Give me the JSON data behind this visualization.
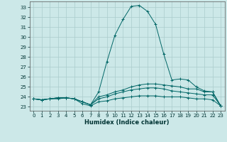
{
  "title": "",
  "xlabel": "Humidex (Indice chaleur)",
  "ylabel": "",
  "bg_color": "#cce8e8",
  "grid_color": "#aacccc",
  "line_color": "#006666",
  "x_ticks": [
    0,
    1,
    2,
    3,
    4,
    5,
    6,
    7,
    8,
    9,
    10,
    11,
    12,
    13,
    14,
    15,
    16,
    17,
    18,
    19,
    20,
    21,
    22,
    23
  ],
  "y_ticks": [
    23,
    24,
    25,
    26,
    27,
    28,
    29,
    30,
    31,
    32,
    33
  ],
  "xlim": [
    -0.5,
    23.5
  ],
  "ylim": [
    22.6,
    33.6
  ],
  "lines": [
    {
      "x": [
        0,
        1,
        2,
        3,
        4,
        5,
        6,
        7,
        8,
        9,
        10,
        11,
        12,
        13,
        14,
        15,
        16,
        17,
        18,
        19,
        20,
        21,
        22,
        23
      ],
      "y": [
        23.8,
        23.7,
        23.8,
        23.8,
        23.9,
        23.8,
        23.5,
        23.2,
        24.5,
        27.5,
        30.2,
        31.8,
        33.1,
        33.2,
        32.6,
        31.3,
        28.3,
        25.7,
        25.8,
        25.7,
        25.0,
        24.6,
        24.5,
        23.1
      ]
    },
    {
      "x": [
        0,
        1,
        2,
        3,
        4,
        5,
        6,
        7,
        8,
        9,
        10,
        11,
        12,
        13,
        14,
        15,
        16,
        17,
        18,
        19,
        20,
        21,
        22,
        23
      ],
      "y": [
        23.8,
        23.7,
        23.8,
        23.9,
        23.9,
        23.8,
        23.5,
        23.2,
        24.0,
        24.2,
        24.5,
        24.7,
        25.0,
        25.2,
        25.3,
        25.3,
        25.2,
        25.1,
        25.0,
        24.8,
        24.8,
        24.5,
        24.5,
        23.1
      ]
    },
    {
      "x": [
        0,
        1,
        2,
        3,
        4,
        5,
        6,
        7,
        8,
        9,
        10,
        11,
        12,
        13,
        14,
        15,
        16,
        17,
        18,
        19,
        20,
        21,
        22,
        23
      ],
      "y": [
        23.8,
        23.7,
        23.8,
        23.9,
        23.9,
        23.8,
        23.5,
        23.2,
        23.8,
        24.0,
        24.3,
        24.5,
        24.7,
        24.8,
        24.9,
        24.9,
        24.8,
        24.6,
        24.5,
        24.4,
        24.3,
        24.2,
        24.2,
        23.1
      ]
    },
    {
      "x": [
        0,
        1,
        2,
        3,
        4,
        5,
        6,
        7,
        8,
        9,
        10,
        11,
        12,
        13,
        14,
        15,
        16,
        17,
        18,
        19,
        20,
        21,
        22,
        23
      ],
      "y": [
        23.8,
        23.7,
        23.8,
        23.9,
        23.9,
        23.8,
        23.3,
        23.1,
        23.5,
        23.6,
        23.8,
        23.9,
        24.0,
        24.1,
        24.1,
        24.1,
        24.0,
        24.0,
        24.0,
        23.9,
        23.8,
        23.8,
        23.7,
        23.1
      ]
    }
  ]
}
